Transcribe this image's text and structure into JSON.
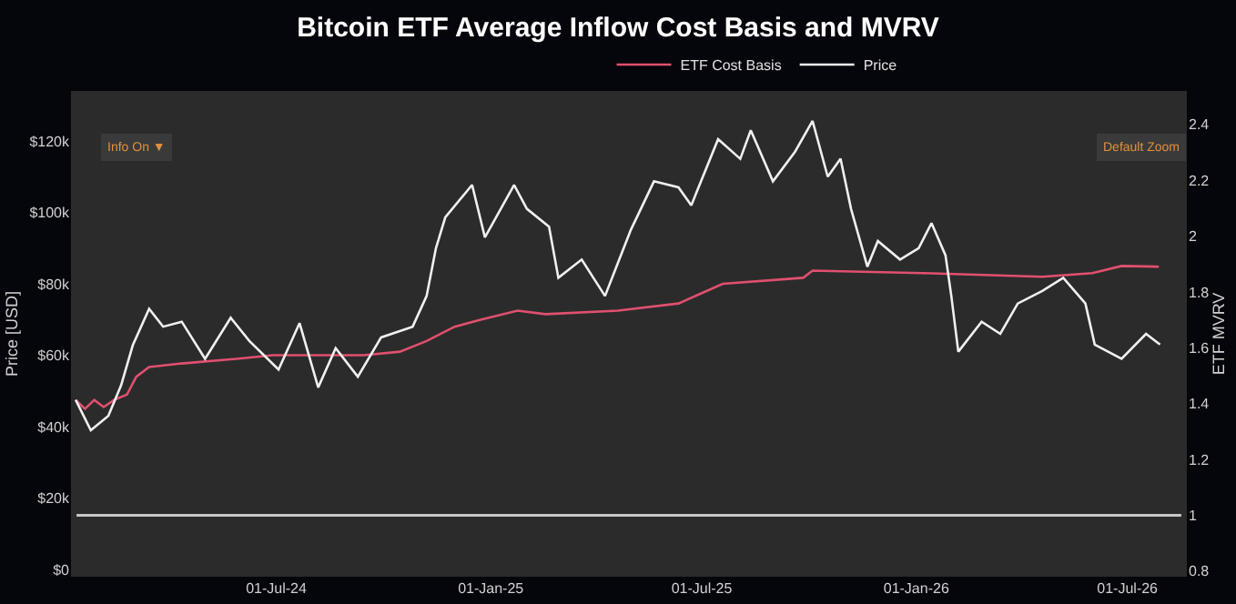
{
  "chart_data": {
    "type": "line",
    "title": "Bitcoin ETF Average Inflow Cost Basis and MVRV",
    "ylabel": "Price [USD]",
    "y2label": "ETF MVRV",
    "annotations": [
      "Info On ▼",
      "Default Zoom"
    ],
    "xlim": [
      "2024-01-07",
      "2026-08-21"
    ],
    "xticks": [
      {
        "value": "2024-07-01",
        "label": "01-Jul-24"
      },
      {
        "value": "2025-01-01",
        "label": "01-Jan-25"
      },
      {
        "value": "2025-07-01",
        "label": "01-Jul-25"
      },
      {
        "value": "2026-01-01",
        "label": "01-Jan-26"
      },
      {
        "value": "2026-07-01",
        "label": "01-Jul-26"
      }
    ],
    "ylim": [
      -2000,
      134000
    ],
    "yticks": [
      {
        "value": 0,
        "label": "$0"
      },
      {
        "value": 20000,
        "label": "$20k"
      },
      {
        "value": 40000,
        "label": "$40k"
      },
      {
        "value": 60000,
        "label": "$60k"
      },
      {
        "value": 80000,
        "label": "$80k"
      },
      {
        "value": 100000,
        "label": "$100k"
      },
      {
        "value": 120000,
        "label": "$120k"
      }
    ],
    "y2lim": [
      0.78,
      2.52
    ],
    "y2ticks": [
      {
        "value": 0.8,
        "label": "0.8"
      },
      1,
      {
        "value": 1.2,
        "label": "1.2"
      },
      {
        "value": 1.4,
        "label": "1.4"
      },
      {
        "value": 1.6,
        "label": "1.6"
      },
      {
        "value": 1.8,
        "label": "1.8"
      },
      2,
      {
        "value": 2.2,
        "label": "2.2"
      },
      {
        "value": 2.4,
        "label": "2.4"
      }
    ],
    "ref_lines": [
      {
        "axis": "y2",
        "value": 1,
        "label": null,
        "color": "#c8c8c8"
      }
    ],
    "grid": false,
    "legend": "top",
    "marker": "none",
    "line_style": "solid",
    "series": [
      {
        "name": "ETF Cost Basis",
        "color": "#e0506e",
        "x": [
          "2024-01-11",
          "2024-01-19",
          "2024-01-27",
          "2024-02-04",
          "2024-02-13",
          "2024-02-24",
          "2024-03-03",
          "2024-03-14",
          "2024-04-11",
          "2024-05-28",
          "2024-06-28",
          "2024-09-14",
          "2024-10-15",
          "2024-11-07",
          "2024-12-01",
          "2024-12-24",
          "2025-01-24",
          "2025-02-17",
          "2025-04-20",
          "2025-06-11",
          "2025-07-19",
          "2025-09-26",
          "2025-10-04",
          "2026-01-06",
          "2026-04-19",
          "2026-06-01",
          "2026-06-26",
          "2026-07-28"
        ],
        "values": [
          47500,
          45000,
          47500,
          45500,
          47500,
          49000,
          54000,
          56700,
          57700,
          59000,
          60000,
          60000,
          61000,
          64000,
          68000,
          70000,
          72500,
          71500,
          72500,
          74500,
          80000,
          81700,
          83700,
          83000,
          82000,
          83000,
          85000,
          84800
        ]
      },
      {
        "name": "Price",
        "color": "#f0f0f0",
        "x": [
          "2024-01-11",
          "2024-01-24",
          "2024-02-08",
          "2024-02-19",
          "2024-02-29",
          "2024-03-14",
          "2024-03-26",
          "2024-04-11",
          "2024-05-01",
          "2024-05-23",
          "2024-06-08",
          "2024-07-03",
          "2024-07-21",
          "2024-08-06",
          "2024-08-21",
          "2024-09-09",
          "2024-09-29",
          "2024-10-26",
          "2024-11-07",
          "2024-11-15",
          "2024-11-23",
          "2024-12-16",
          "2024-12-27",
          "2025-01-21",
          "2025-02-01",
          "2025-02-20",
          "2025-02-28",
          "2025-03-20",
          "2025-04-09",
          "2025-04-20",
          "2025-05-01",
          "2025-05-21",
          "2025-06-11",
          "2025-06-22",
          "2025-07-15",
          "2025-08-03",
          "2025-08-12",
          "2025-08-31",
          "2025-09-19",
          "2025-10-04",
          "2025-10-17",
          "2025-10-28",
          "2025-11-06",
          "2025-11-20",
          "2025-11-29",
          "2025-12-18",
          "2026-01-03",
          "2026-01-14",
          "2026-01-26",
          "2026-01-31",
          "2026-02-06",
          "2026-02-26",
          "2026-03-14",
          "2026-03-29",
          "2026-04-19",
          "2026-05-07",
          "2026-05-26",
          "2026-06-03",
          "2026-06-26",
          "2026-07-17",
          "2026-07-29"
        ],
        "values": [
          47500,
          39000,
          43000,
          51600,
          62800,
          73000,
          68000,
          69400,
          59000,
          70500,
          64000,
          56000,
          69000,
          51000,
          62000,
          54000,
          65000,
          68000,
          76600,
          90000,
          98600,
          107700,
          93000,
          107700,
          101000,
          96000,
          81700,
          86800,
          76600,
          85800,
          95000,
          108700,
          107000,
          102000,
          120500,
          115000,
          123000,
          108700,
          117000,
          125600,
          110000,
          115000,
          101000,
          84800,
          92000,
          86800,
          90000,
          97000,
          88000,
          76600,
          61000,
          69400,
          66000,
          74500,
          78000,
          81700,
          74500,
          63000,
          59000,
          66000,
          63000
        ]
      }
    ]
  }
}
